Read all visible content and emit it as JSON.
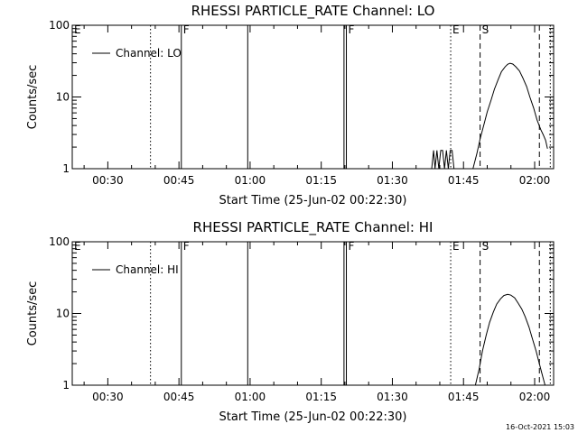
{
  "footer": {
    "timestamp": "16-Oct-2021 15:03"
  },
  "chart_data": [
    {
      "type": "line",
      "title": "RHESSI PARTICLE_RATE Channel: LO",
      "xlabel": "Start Time (25-Jun-02 00:22:30)",
      "ylabel": "Counts/sec",
      "yscale": "log",
      "ylim": [
        1,
        100
      ],
      "xlim_minutes": [
        22.5,
        124.0
      ],
      "x_ticks": [
        {
          "t": 30,
          "label": "00:30"
        },
        {
          "t": 45,
          "label": "00:45"
        },
        {
          "t": 60,
          "label": "01:00"
        },
        {
          "t": 75,
          "label": "01:15"
        },
        {
          "t": 90,
          "label": "01:30"
        },
        {
          "t": 105,
          "label": "01:45"
        },
        {
          "t": 120,
          "label": "02:00"
        }
      ],
      "y_ticks": [
        {
          "v": 1,
          "label": "1"
        },
        {
          "v": 10,
          "label": "10"
        },
        {
          "v": 100,
          "label": "100"
        }
      ],
      "legend": {
        "entry": "Channel: LO",
        "position": "top-left"
      },
      "markers": [
        {
          "t": 22.5,
          "label": "E",
          "style": "none"
        },
        {
          "t": 39.0,
          "label": "",
          "style": "dotted"
        },
        {
          "t": 45.5,
          "label": "F",
          "style": "solid"
        },
        {
          "t": 59.5,
          "label": "",
          "style": "solid"
        },
        {
          "t": 79.8,
          "label": "",
          "style": "solid"
        },
        {
          "t": 80.3,
          "label": "F",
          "style": "solid"
        },
        {
          "t": 102.3,
          "label": "E",
          "style": "dotted"
        },
        {
          "t": 108.5,
          "label": "S",
          "style": "dashed"
        },
        {
          "t": 121.0,
          "label": "",
          "style": "dashed"
        },
        {
          "t": 123.3,
          "label": "",
          "style": "dotted"
        }
      ],
      "series": [
        {
          "values_t": [
            98.3,
            98.7,
            99.0,
            99.4,
            99.8,
            100.2,
            100.6,
            101.0,
            101.4,
            101.8,
            102.2,
            102.6,
            103.0
          ],
          "values_y": [
            1,
            1.8,
            1,
            1.8,
            1,
            1.8,
            1.8,
            1,
            1.8,
            1,
            1.8,
            1.8,
            1
          ]
        },
        {
          "values_t": [
            107.0,
            107.8,
            108.5,
            109.3,
            110.0,
            110.8,
            111.5,
            112.3,
            113.0,
            113.8,
            114.3,
            114.8,
            115.4,
            116.0,
            116.8,
            117.5,
            118.3,
            119.0,
            119.8,
            120.5,
            121.3,
            121.8,
            122.3,
            122.7
          ],
          "values_y": [
            1,
            1.6,
            2.6,
            4.1,
            6.2,
            9.0,
            12.8,
            17.5,
            22.5,
            26.5,
            28.5,
            29.5,
            28.8,
            26.5,
            23.0,
            18.5,
            14.0,
            10.0,
            7.0,
            4.8,
            3.5,
            3.0,
            2.5,
            1.9
          ]
        }
      ]
    },
    {
      "type": "line",
      "title": "RHESSI PARTICLE_RATE Channel: HI",
      "xlabel": "Start Time (25-Jun-02 00:22:30)",
      "ylabel": "Counts/sec",
      "yscale": "log",
      "ylim": [
        1,
        100
      ],
      "xlim_minutes": [
        22.5,
        124.0
      ],
      "x_ticks": [
        {
          "t": 30,
          "label": "00:30"
        },
        {
          "t": 45,
          "label": "00:45"
        },
        {
          "t": 60,
          "label": "01:00"
        },
        {
          "t": 75,
          "label": "01:15"
        },
        {
          "t": 90,
          "label": "01:30"
        },
        {
          "t": 105,
          "label": "01:45"
        },
        {
          "t": 120,
          "label": "02:00"
        }
      ],
      "y_ticks": [
        {
          "v": 1,
          "label": "1"
        },
        {
          "v": 10,
          "label": "10"
        },
        {
          "v": 100,
          "label": "100"
        }
      ],
      "legend": {
        "entry": "Channel: HI",
        "position": "top-left"
      },
      "markers": [
        {
          "t": 22.5,
          "label": "E",
          "style": "none"
        },
        {
          "t": 39.0,
          "label": "",
          "style": "dotted"
        },
        {
          "t": 45.5,
          "label": "F",
          "style": "solid"
        },
        {
          "t": 59.5,
          "label": "",
          "style": "solid"
        },
        {
          "t": 79.8,
          "label": "",
          "style": "solid"
        },
        {
          "t": 80.3,
          "label": "F",
          "style": "solid"
        },
        {
          "t": 102.3,
          "label": "E",
          "style": "dotted"
        },
        {
          "t": 108.5,
          "label": "S",
          "style": "dashed"
        },
        {
          "t": 121.0,
          "label": "",
          "style": "dashed"
        },
        {
          "t": 123.3,
          "label": "",
          "style": "dotted"
        }
      ],
      "series": [
        {
          "values_t": [
            107.5,
            108.3,
            109.0,
            109.8,
            110.5,
            111.3,
            112.0,
            112.8,
            113.5,
            114.3,
            115.0,
            115.8,
            116.5,
            117.3,
            118.0,
            118.8,
            119.5,
            120.3,
            121.0,
            121.6,
            122.2
          ],
          "values_y": [
            1,
            1.7,
            3.0,
            5.0,
            7.5,
            10.5,
            13.5,
            16.0,
            17.8,
            18.5,
            18.0,
            16.5,
            14.0,
            11.5,
            9.0,
            6.5,
            4.5,
            3.0,
            2.0,
            1.4,
            1
          ]
        }
      ]
    }
  ]
}
